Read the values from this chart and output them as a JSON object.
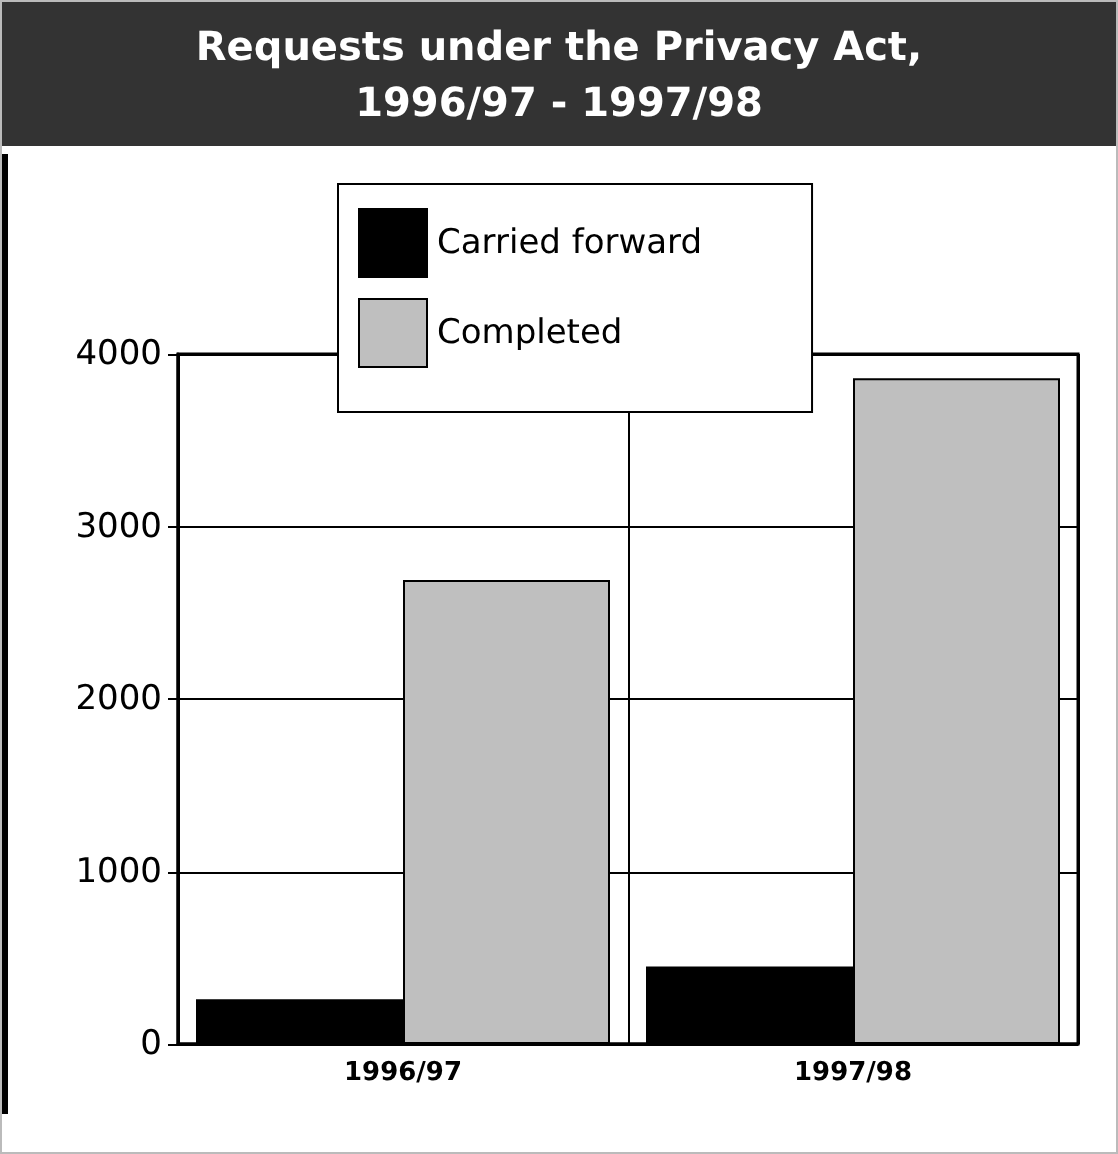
{
  "chart_data": {
    "type": "bar",
    "title": "Requests under the Privacy Act, 1996/97 - 1997/98",
    "categories": [
      "1996/97",
      "1997/98"
    ],
    "series": [
      {
        "name": "Carried forward",
        "color": "#000000",
        "values": [
          260,
          450
        ]
      },
      {
        "name": "Completed",
        "color": "#bfbfbf",
        "values": [
          2690,
          3860
        ]
      }
    ],
    "ylim": [
      0,
      4000
    ],
    "yticks": [
      0,
      1000,
      2000,
      3000,
      4000
    ],
    "grid": true,
    "legend": "top"
  }
}
